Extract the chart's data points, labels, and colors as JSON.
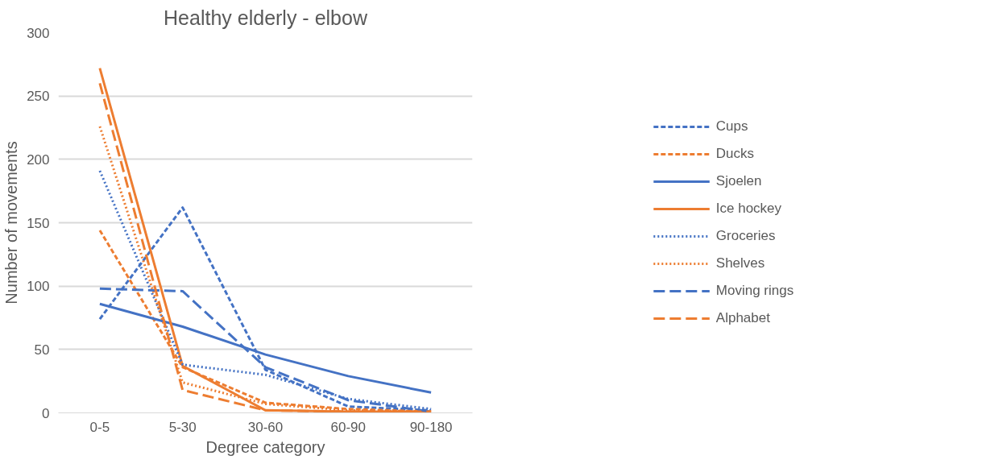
{
  "chart_data": {
    "type": "line",
    "title": "Healthy elderly - elbow",
    "xlabel": "Degree category",
    "ylabel": "Number of movements",
    "categories": [
      "0-5",
      "5-30",
      "30-60",
      "60-90",
      "90-180"
    ],
    "series": [
      {
        "name": "Cups",
        "color": "#4472c4",
        "line_style": "dashed",
        "values": [
          74,
          162,
          34,
          5,
          2
        ]
      },
      {
        "name": "Ducks",
        "color": "#ed7d31",
        "line_style": "dashed",
        "values": [
          144,
          36,
          8,
          3,
          1
        ]
      },
      {
        "name": "Sjoelen",
        "color": "#4472c4",
        "line_style": "solid",
        "values": [
          86,
          68,
          46,
          29,
          16
        ]
      },
      {
        "name": "Ice hockey",
        "color": "#ed7d31",
        "line_style": "solid",
        "values": [
          272,
          37,
          2,
          1,
          1
        ]
      },
      {
        "name": "Groceries",
        "color": "#4472c4",
        "line_style": "dotted",
        "values": [
          191,
          38,
          30,
          11,
          3
        ]
      },
      {
        "name": "Shelves",
        "color": "#ed7d31",
        "line_style": "dotted",
        "values": [
          226,
          24,
          7,
          2,
          1
        ]
      },
      {
        "name": "Moving rings",
        "color": "#4472c4",
        "line_style": "long dashed",
        "values": [
          98,
          96,
          36,
          10,
          1
        ]
      },
      {
        "name": "Alphabet",
        "color": "#ed7d31",
        "line_style": "long dashed",
        "values": [
          260,
          18,
          2,
          1,
          1
        ]
      }
    ],
    "ylim": [
      0,
      300
    ],
    "yticks": [
      0,
      50,
      100,
      150,
      200,
      250,
      300
    ],
    "grid": "y",
    "legend": "right",
    "marker": "none"
  }
}
